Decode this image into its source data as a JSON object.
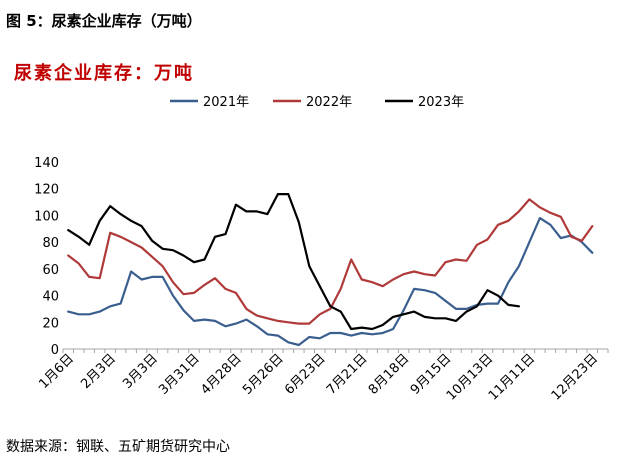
{
  "figure_title": "图 5：尿素企业库存（万吨）",
  "source": "数据来源：钢联、五矿期货研究中心",
  "chart_data": {
    "type": "line",
    "title": "尿素企业库存：万吨",
    "xlabel": "",
    "ylabel": "",
    "ylim": [
      0,
      140
    ],
    "yticks": [
      0,
      20,
      40,
      60,
      80,
      100,
      120,
      140
    ],
    "grid": false,
    "legend_position": "top",
    "x_tick_labels": [
      "1月6日",
      "2月3日",
      "3月3日",
      "3月31日",
      "4月28日",
      "5月26日",
      "6月23日",
      "7月21日",
      "8月18日",
      "9月15日",
      "10月13日",
      "11月11日",
      "12月23日"
    ],
    "x_tick_weeks": [
      0,
      4,
      8,
      12,
      16,
      20,
      24,
      28,
      32,
      36,
      40,
      44,
      50
    ],
    "series": [
      {
        "name": "2021年",
        "color": "#3a5f8f",
        "x_weeks": [
          0,
          1,
          2,
          3,
          4,
          5,
          6,
          7,
          8,
          9,
          10,
          11,
          12,
          13,
          14,
          15,
          16,
          17,
          18,
          19,
          20,
          21,
          22,
          23,
          24,
          25,
          26,
          27,
          28,
          29,
          30,
          31,
          32,
          33,
          34,
          35,
          36,
          37,
          38,
          39,
          40,
          41,
          42,
          43,
          44,
          45,
          46,
          47,
          48,
          49,
          50,
          51
        ],
        "values": [
          28,
          26,
          26,
          28,
          32,
          34,
          58,
          52,
          54,
          54,
          40,
          29,
          21,
          22,
          21,
          17,
          19,
          22,
          17,
          11,
          10,
          5,
          3,
          9,
          8,
          12,
          12,
          10,
          12,
          11,
          12,
          15,
          29,
          45,
          44,
          42,
          36,
          30,
          30,
          33,
          34,
          34,
          50,
          62,
          80,
          98,
          93,
          83,
          85,
          80,
          72,
          null
        ]
      },
      {
        "name": "2022年",
        "color": "#b03a3a",
        "x_weeks": [
          0,
          1,
          2,
          3,
          4,
          5,
          6,
          7,
          8,
          9,
          10,
          11,
          12,
          13,
          14,
          15,
          16,
          17,
          18,
          19,
          20,
          21,
          22,
          23,
          24,
          25,
          26,
          27,
          28,
          29,
          30,
          31,
          32,
          33,
          34,
          35,
          36,
          37,
          38,
          39,
          40,
          41,
          42,
          43,
          44,
          45,
          46,
          47,
          48,
          49,
          50,
          51
        ],
        "values": [
          70,
          64,
          54,
          53,
          87,
          84,
          80,
          76,
          69,
          62,
          50,
          41,
          42,
          48,
          53,
          45,
          42,
          30,
          25,
          23,
          21,
          20,
          19,
          19,
          26,
          30,
          45,
          67,
          52,
          50,
          47,
          52,
          56,
          58,
          56,
          55,
          65,
          67,
          66,
          78,
          82,
          93,
          96,
          103,
          112,
          106,
          102,
          99,
          84,
          81,
          92,
          null
        ]
      },
      {
        "name": "2023年",
        "color": "#000000",
        "x_weeks": [
          0,
          1,
          2,
          3,
          4,
          5,
          6,
          7,
          8,
          9,
          10,
          11,
          12,
          13,
          14,
          15,
          16,
          17,
          18,
          19,
          20,
          21,
          22,
          23,
          24,
          25,
          26,
          27,
          28,
          29,
          30,
          31,
          32,
          33,
          34,
          35,
          36,
          37,
          38,
          39,
          40,
          41,
          42,
          43
        ],
        "values": [
          89,
          84,
          78,
          96,
          107,
          101,
          96,
          92,
          81,
          75,
          74,
          70,
          65,
          67,
          84,
          86,
          108,
          103,
          103,
          101,
          116,
          116,
          95,
          62,
          47,
          32,
          28,
          15,
          16,
          15,
          18,
          24,
          26,
          28,
          24,
          23,
          23,
          21,
          28,
          32,
          44,
          40,
          33,
          32
        ]
      }
    ]
  }
}
